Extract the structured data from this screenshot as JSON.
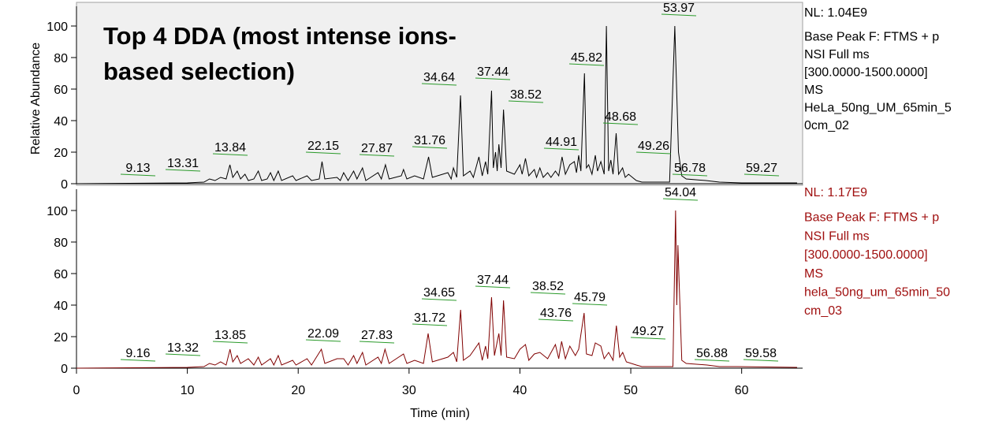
{
  "chart_data": [
    {
      "type": "line",
      "annotation": [
        "Top 4 DDA (most intense ions-",
        "based selection)"
      ],
      "ylabel": "Relative Abundance",
      "xlim": [
        0,
        65.5
      ],
      "ylim": [
        0,
        112.5
      ],
      "yticks": [
        0,
        20,
        40,
        60,
        80,
        100
      ],
      "color": "#000000",
      "info": [
        "NL: 1.04E9",
        "Base Peak F: FTMS + p",
        "NSI Full ms",
        "[300.0000-1500.0000]",
        "MS",
        "HeLa_50ng_UM_65min_5",
        "0cm_02"
      ],
      "peak_labels": [
        9.13,
        13.31,
        13.84,
        22.15,
        27.87,
        31.76,
        34.64,
        37.44,
        38.52,
        44.91,
        45.82,
        48.68,
        49.26,
        53.97,
        56.78,
        59.27
      ],
      "x": [
        0,
        10,
        11.5,
        12,
        12.5,
        13,
        13.5,
        13.84,
        14.1,
        14.5,
        14.8,
        15.2,
        15.5,
        16,
        16.4,
        16.7,
        17.2,
        17.5,
        17.8,
        18.2,
        18.5,
        19.5,
        19.8,
        20.8,
        21.2,
        21.9,
        22.15,
        22.4,
        23.5,
        23.8,
        24.1,
        24.5,
        25,
        25.3,
        25.8,
        26.1,
        27.2,
        27.5,
        27.87,
        28.2,
        29.3,
        29.5,
        29.8,
        30.5,
        31.3,
        31.76,
        32.1,
        33.5,
        33.8,
        34.0,
        34.3,
        34.64,
        34.9,
        35.5,
        35.8,
        36.3,
        36.6,
        36.9,
        37.1,
        37.44,
        37.6,
        37.8,
        37.95,
        38.1,
        38.3,
        38.52,
        38.8,
        39.5,
        40.0,
        40.2,
        40.5,
        40.8,
        41.3,
        41.5,
        41.8,
        42.1,
        42.5,
        42.8,
        43.2,
        43.5,
        43.8,
        44.1,
        44.5,
        44.91,
        45.1,
        45.3,
        45.5,
        45.82,
        46.0,
        46.2,
        46.5,
        46.8,
        47.0,
        47.3,
        47.6,
        47.8,
        48.0,
        48.2,
        48.4,
        48.68,
        48.9,
        49.26,
        49.5,
        49.8,
        50.5,
        51,
        53.5,
        53.97,
        54.3,
        54.6,
        55,
        56.78,
        58,
        60,
        65
      ],
      "values": [
        0,
        0.5,
        1,
        3,
        2,
        4,
        3,
        12,
        4,
        8,
        3,
        6,
        2,
        3,
        8,
        2,
        3,
        7,
        2,
        8,
        2,
        5,
        2,
        5,
        2,
        3,
        14,
        3,
        4,
        2,
        7,
        2,
        8,
        3,
        10,
        2,
        7,
        3,
        12,
        3,
        5,
        9,
        3,
        5,
        3,
        17,
        4,
        7,
        3,
        10,
        4,
        56,
        5,
        8,
        4,
        17,
        5,
        14,
        6,
        59,
        10,
        20,
        8,
        25,
        10,
        47,
        8,
        6,
        12,
        6,
        16,
        5,
        9,
        4,
        10,
        4,
        7,
        4,
        8,
        5,
        17,
        6,
        12,
        14,
        7,
        18,
        8,
        70,
        10,
        12,
        6,
        18,
        8,
        14,
        6,
        100,
        8,
        15,
        6,
        32,
        6,
        10,
        4,
        6,
        2,
        1,
        1,
        100,
        20,
        5,
        3,
        2,
        1,
        0.5,
        0.5
      ]
    },
    {
      "type": "line",
      "xlabel": "Time (min)",
      "xlim": [
        0,
        65.5
      ],
      "xticks": [
        0,
        10,
        20,
        30,
        40,
        50,
        60
      ],
      "ylim": [
        0,
        113.5
      ],
      "yticks": [
        0,
        20,
        40,
        60,
        80,
        100
      ],
      "color": "#800000",
      "info": [
        "NL: 1.17E9",
        "Base Peak F: FTMS + p",
        "NSI Full ms",
        "[300.0000-1500.0000]",
        "MS",
        "hela_50ng_um_65min_50",
        "cm_03"
      ],
      "peak_labels": [
        9.16,
        13.32,
        13.85,
        22.09,
        27.83,
        31.72,
        34.65,
        37.44,
        38.52,
        43.76,
        45.79,
        49.27,
        54.04,
        56.88,
        59.58
      ],
      "x": [
        0,
        10,
        11.5,
        12,
        12.5,
        13,
        13.5,
        13.85,
        14.1,
        14.5,
        14.8,
        15.5,
        16,
        16.4,
        16.7,
        17.5,
        17.8,
        18.2,
        18.5,
        19.5,
        19.8,
        20.8,
        21.2,
        22.09,
        22.4,
        23.5,
        24.1,
        24.5,
        25,
        25.3,
        25.8,
        26.1,
        27.2,
        27.5,
        27.83,
        28.2,
        29.5,
        29.8,
        30.5,
        31.3,
        31.72,
        32.1,
        33.5,
        34.0,
        34.3,
        34.65,
        34.9,
        35.5,
        36.3,
        36.6,
        36.9,
        37.1,
        37.44,
        37.7,
        38.1,
        38.3,
        38.52,
        38.8,
        39.5,
        40.0,
        40.5,
        40.8,
        41.3,
        41.8,
        42.5,
        43.2,
        43.5,
        43.76,
        44.1,
        44.5,
        45.0,
        45.3,
        45.79,
        46.0,
        46.5,
        46.8,
        47.3,
        47.6,
        48.0,
        48.4,
        48.7,
        49.0,
        49.27,
        49.6,
        50.5,
        51,
        53.8,
        54.04,
        54.15,
        54.25,
        54.6,
        55,
        56.88,
        58,
        59.58,
        65
      ],
      "values": [
        0,
        0.5,
        1,
        3,
        2,
        4,
        2,
        12,
        4,
        8,
        3,
        6,
        2,
        7,
        2,
        6,
        2,
        8,
        2,
        5,
        2,
        6,
        2,
        12,
        3,
        6,
        6,
        2,
        8,
        3,
        10,
        2,
        7,
        3,
        12,
        3,
        9,
        3,
        5,
        3,
        22,
        4,
        7,
        10,
        4,
        37,
        5,
        8,
        16,
        5,
        14,
        6,
        45,
        8,
        22,
        8,
        43,
        7,
        6,
        12,
        15,
        5,
        9,
        10,
        6,
        15,
        6,
        17,
        6,
        14,
        8,
        12,
        35,
        9,
        8,
        16,
        14,
        6,
        10,
        5,
        27,
        7,
        10,
        4,
        2,
        1,
        1,
        100,
        40,
        78,
        5,
        3,
        2,
        1,
        1,
        0.5
      ]
    }
  ]
}
